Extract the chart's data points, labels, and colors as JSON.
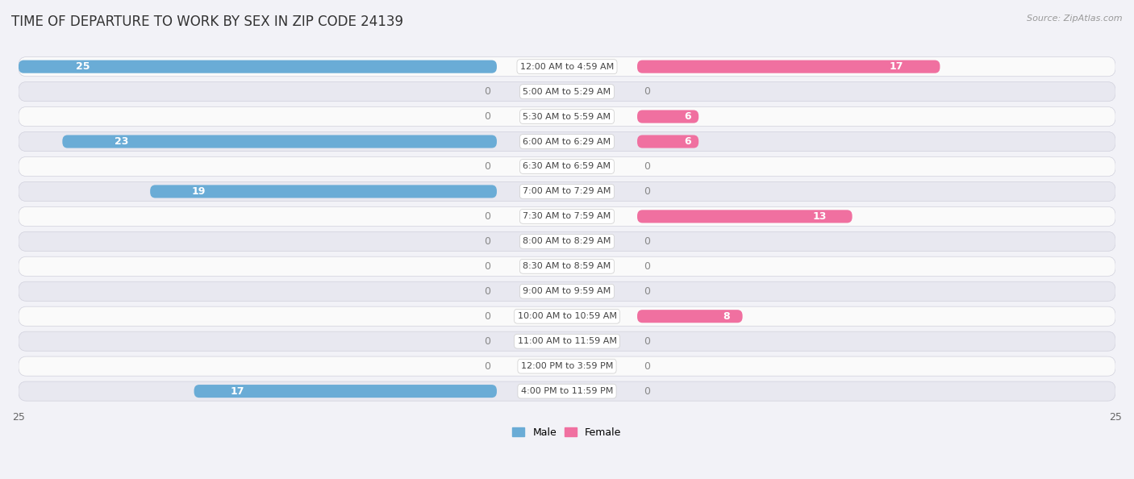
{
  "title": "TIME OF DEPARTURE TO WORK BY SEX IN ZIP CODE 24139",
  "source": "Source: ZipAtlas.com",
  "categories": [
    "12:00 AM to 4:59 AM",
    "5:00 AM to 5:29 AM",
    "5:30 AM to 5:59 AM",
    "6:00 AM to 6:29 AM",
    "6:30 AM to 6:59 AM",
    "7:00 AM to 7:29 AM",
    "7:30 AM to 7:59 AM",
    "8:00 AM to 8:29 AM",
    "8:30 AM to 8:59 AM",
    "9:00 AM to 9:59 AM",
    "10:00 AM to 10:59 AM",
    "11:00 AM to 11:59 AM",
    "12:00 PM to 3:59 PM",
    "4:00 PM to 11:59 PM"
  ],
  "male_values": [
    25,
    0,
    0,
    23,
    0,
    19,
    0,
    0,
    0,
    0,
    0,
    0,
    0,
    17
  ],
  "female_values": [
    17,
    0,
    6,
    6,
    0,
    0,
    13,
    0,
    0,
    0,
    8,
    0,
    0,
    0
  ],
  "male_color": "#6aacd6",
  "male_color_light": "#a8cce4",
  "female_color": "#f070a0",
  "female_color_light": "#f4aec8",
  "axis_max": 25,
  "background_color": "#f2f2f7",
  "row_color_even": "#fafafa",
  "row_color_odd": "#e8e8f0",
  "row_border_color": "#d0d0dc",
  "center_label_bg": "#ffffff",
  "title_fontsize": 12,
  "source_fontsize": 8,
  "tick_fontsize": 9,
  "category_fontsize": 8,
  "value_fontsize": 9
}
